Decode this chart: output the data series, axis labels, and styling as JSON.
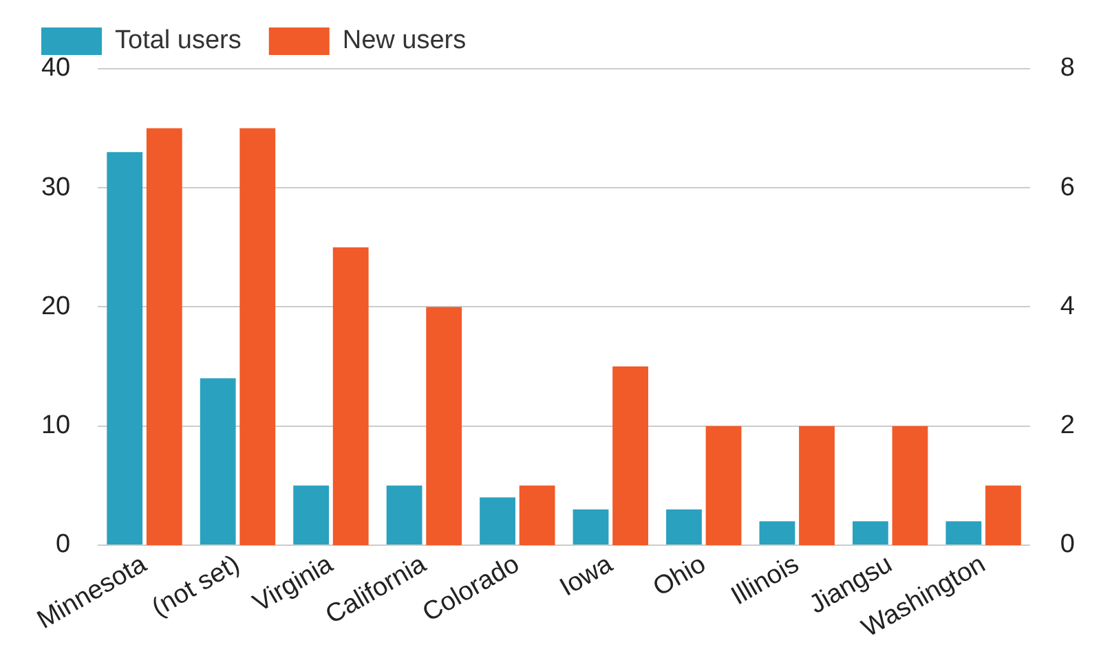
{
  "chart_data": {
    "type": "bar",
    "categories": [
      "Minnesota",
      "(not set)",
      "Virginia",
      "California",
      "Colorado",
      "Iowa",
      "Ohio",
      "Illinois",
      "Jiangsu",
      "Washington"
    ],
    "series": [
      {
        "name": "Total users",
        "color": "#2aa1bf",
        "values": [
          33,
          14,
          5,
          5,
          4,
          3,
          3,
          2,
          2,
          2
        ]
      },
      {
        "name": "New users",
        "color": "#f15a29",
        "axis": "y2",
        "values": [
          7,
          7,
          5,
          4,
          1,
          3,
          2,
          2,
          2,
          1
        ]
      }
    ],
    "ylim": [
      0,
      40
    ],
    "yticks": [
      0,
      10,
      20,
      30,
      40
    ],
    "y2lim": [
      0,
      8
    ],
    "y2ticks": [
      0,
      2,
      4,
      6,
      8
    ],
    "grid": "y",
    "legend": "top left"
  }
}
